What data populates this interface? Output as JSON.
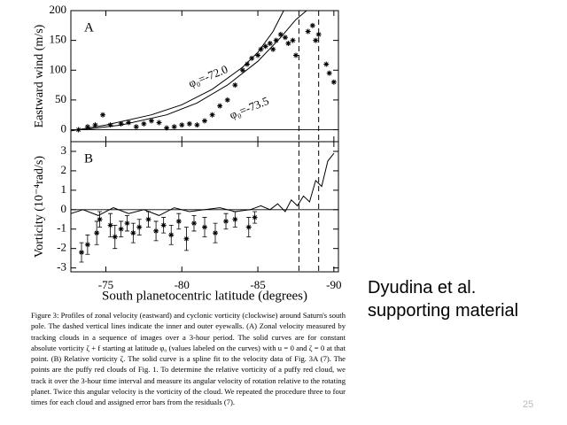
{
  "chart_data": [
    {
      "type": "scatter",
      "panel": "A",
      "ylabel": "Eastward wind (m/s)",
      "xlim": [
        -72.7,
        -90.3
      ],
      "ylim": [
        -20,
        200
      ],
      "yticks": [
        0,
        50,
        100,
        150,
        200
      ],
      "hline": 0,
      "vlines": [
        -87.7,
        -89.0
      ],
      "annotations": [
        {
          "text": "φ₀=-72.0",
          "x": -80.5,
          "y": 75
        },
        {
          "text": "φ₀=-73.5",
          "x": -83.2,
          "y": 22
        }
      ],
      "series": [
        {
          "style": "line",
          "color": "#000000",
          "x": [
            -72.7,
            -75,
            -78,
            -80,
            -82,
            -84,
            -85,
            -86,
            -86.7
          ],
          "values": [
            -2,
            8,
            25,
            42,
            68,
            105,
            130,
            165,
            200
          ]
        },
        {
          "style": "line",
          "color": "#000000",
          "x": [
            -73.5,
            -76,
            -79,
            -81,
            -83,
            -85,
            -86.5,
            -87.5,
            -88.2
          ],
          "values": [
            0,
            8,
            25,
            45,
            75,
            115,
            155,
            185,
            200
          ]
        },
        {
          "style": "marker",
          "color": "#000000",
          "x": [
            -73.2,
            -73.8,
            -74.3,
            -74.8,
            -75.3,
            -76,
            -76.5,
            -77,
            -77.5,
            -78,
            -78.5,
            -79,
            -79.5,
            -80,
            -80.5,
            -81,
            -81.5,
            -82,
            -82.5,
            -83,
            -83.5,
            -84,
            -84.3,
            -84.6,
            -85,
            -85.2,
            -85.5,
            -85.8,
            -86,
            -86.2,
            -86.5,
            -86.8,
            -87,
            -87.3,
            -87.5,
            -88.3,
            -88.6,
            -88.8,
            -89,
            -89.5,
            -89.7,
            -90
          ],
          "values": [
            0,
            5,
            8,
            25,
            8,
            10,
            12,
            5,
            10,
            15,
            12,
            3,
            5,
            8,
            10,
            8,
            15,
            25,
            40,
            50,
            75,
            100,
            110,
            120,
            125,
            135,
            140,
            145,
            135,
            150,
            160,
            155,
            145,
            150,
            125,
            165,
            175,
            150,
            160,
            110,
            95,
            80
          ]
        }
      ]
    },
    {
      "type": "scatter",
      "panel": "B",
      "ylabel": "Vorticity (10⁻⁴rad/s)",
      "xlabel": "South planetocentric latitude (degrees)",
      "xlim": [
        -72.7,
        -90.3
      ],
      "xticks": [
        -75,
        -80,
        -85,
        -90
      ],
      "ylim": [
        -3.2,
        3.5
      ],
      "yticks": [
        -3,
        -2,
        -1,
        0,
        1,
        2,
        3
      ],
      "hline": 0,
      "vlines": [
        -87.7,
        -89.0
      ],
      "series": [
        {
          "style": "line",
          "color": "#000000",
          "x": [
            -72.7,
            -73.5,
            -74.5,
            -75.5,
            -76.5,
            -77.5,
            -78.5,
            -79.5,
            -80.5,
            -81.5,
            -82.5,
            -83.5,
            -84.5,
            -85.2,
            -85.8,
            -86.3,
            -86.8,
            -87.2,
            -87.6,
            -88,
            -88.4,
            -88.8,
            -89.2,
            -89.6,
            -90
          ],
          "values": [
            -0.2,
            0,
            -0.3,
            0.1,
            -0.2,
            0,
            -0.3,
            0.1,
            -0.1,
            0,
            0.1,
            -0.1,
            0,
            0.2,
            0,
            0.3,
            -0.1,
            0.5,
            0.2,
            0.7,
            0.4,
            1.5,
            1.2,
            2.5,
            2.9
          ]
        },
        {
          "style": "marker",
          "color": "#000000",
          "x": [
            -73.4,
            -73.8,
            -74.4,
            -74.6,
            -75.3,
            -75.6,
            -76,
            -76.4,
            -76.8,
            -77.2,
            -77.8,
            -78.3,
            -78.8,
            -79.3,
            -79.8,
            -80.3,
            -80.8,
            -81.5,
            -82.2,
            -82.9,
            -83.5,
            -84.4,
            -84.8
          ],
          "values": [
            -2.2,
            -1.8,
            -1.2,
            -0.5,
            -0.8,
            -1.4,
            -1,
            -0.7,
            -1.2,
            -0.9,
            -0.5,
            -1.1,
            -0.8,
            -1.3,
            -0.6,
            -1.5,
            -0.7,
            -0.9,
            -1.2,
            -0.6,
            -0.5,
            -0.9,
            -0.4
          ],
          "errors": [
            0.5,
            0.5,
            0.6,
            0.4,
            0.6,
            0.6,
            0.4,
            0.4,
            0.5,
            0.4,
            0.4,
            0.5,
            0.4,
            0.5,
            0.4,
            0.6,
            0.4,
            0.5,
            0.5,
            0.4,
            0.4,
            0.5,
            0.3
          ]
        }
      ]
    }
  ],
  "slide": {
    "caption": "Figure 3: Profiles of zonal velocity (eastward) and cyclonic vorticity (clockwise) around Saturn's south pole. The dashed vertical lines indicate the inner and outer eyewalls. (A) Zonal velocity measured by tracking clouds in a sequence of images over a 3-hour period. The solid curves are for constant absolute vorticity ζ + f starting at latitude φ₀ (values labeled on the curves) with u = 0 and ζ = 0 at that point. (B) Relative vorticity ζ. The solid curve is a spline fit to the velocity data of Fig. 3A (7). The points are the puffy red clouds of Fig. 1. To determine the relative vorticity of a puffy red cloud, we track it over the 3-hour time interval and measure its angular velocity of rotation relative to the rotating planet. Twice this angular velocity is the vorticity of the cloud. We repeated the procedure three to four times for each cloud and assigned error bars from the residuals (7).",
    "citation": [
      "Dyudina et al.",
      "supporting material"
    ],
    "page_number": "25"
  }
}
